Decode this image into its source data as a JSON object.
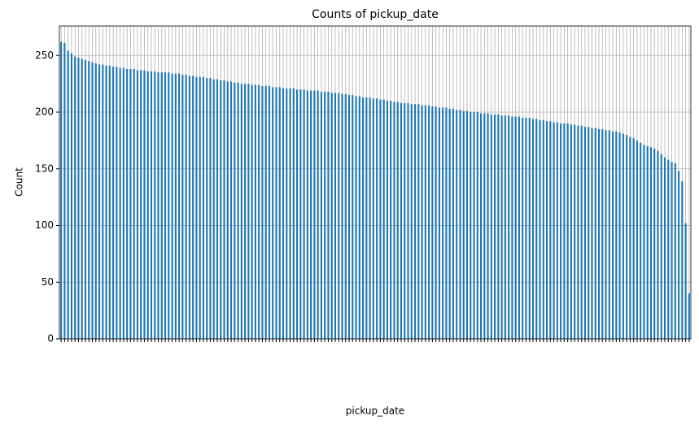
{
  "chart_data": {
    "type": "bar",
    "title": "Counts of pickup_date",
    "xlabel": "pickup_date",
    "ylabel": "Count",
    "categories": [
      null,
      null,
      null,
      null,
      null,
      null,
      null,
      null,
      null,
      null,
      null,
      null,
      null,
      null,
      null,
      null,
      null,
      null,
      null,
      null,
      null,
      null,
      null,
      null,
      null,
      null,
      null,
      null,
      null,
      null,
      null,
      null,
      null,
      null,
      null,
      null,
      null,
      null,
      null,
      null,
      null,
      null,
      null,
      null,
      null,
      null,
      null,
      null,
      null,
      null,
      null,
      null,
      null,
      null,
      null,
      null,
      null,
      null,
      null,
      null,
      null,
      null,
      null,
      null,
      null,
      null,
      null,
      null,
      null,
      null,
      null,
      null,
      null,
      null,
      null,
      null,
      null,
      null,
      null,
      null,
      null,
      null,
      null,
      null,
      null,
      null,
      null,
      null,
      null,
      null,
      null,
      null,
      null,
      null,
      null,
      null,
      null,
      null,
      null,
      null,
      null,
      null,
      null,
      null,
      null,
      null,
      null,
      null,
      null,
      null,
      null,
      null,
      null,
      null,
      null,
      null,
      null,
      null,
      null,
      null,
      null,
      null,
      null,
      null,
      null,
      null,
      null,
      null,
      null,
      null,
      null,
      null,
      null,
      null,
      null,
      null,
      null,
      null,
      null,
      null,
      null,
      null,
      null,
      null,
      null,
      null,
      null,
      null,
      null,
      null,
      null,
      null,
      null,
      null,
      null,
      null,
      null,
      null,
      null,
      null,
      null,
      null,
      null,
      null,
      null,
      null,
      null,
      null,
      null,
      null,
      null,
      null,
      null,
      null,
      null,
      null,
      null,
      null,
      null,
      null,
      null,
      null
    ],
    "values": [
      262,
      261,
      254,
      252,
      249,
      248,
      247,
      246,
      245,
      244,
      243,
      242,
      242,
      241,
      241,
      240,
      240,
      239,
      239,
      238,
      238,
      238,
      237,
      237,
      237,
      236,
      236,
      236,
      235,
      235,
      235,
      235,
      234,
      234,
      234,
      233,
      233,
      232,
      232,
      231,
      231,
      231,
      230,
      230,
      229,
      229,
      228,
      228,
      227,
      227,
      226,
      226,
      225,
      225,
      225,
      224,
      224,
      224,
      223,
      223,
      223,
      222,
      222,
      222,
      221,
      221,
      221,
      221,
      220,
      220,
      220,
      219,
      219,
      219,
      219,
      218,
      218,
      218,
      217,
      217,
      217,
      216,
      216,
      215,
      215,
      214,
      214,
      213,
      213,
      213,
      212,
      212,
      211,
      211,
      210,
      210,
      209,
      209,
      208,
      208,
      208,
      207,
      207,
      207,
      206,
      206,
      206,
      205,
      205,
      204,
      204,
      204,
      203,
      203,
      202,
      202,
      201,
      201,
      200,
      200,
      200,
      199,
      199,
      199,
      198,
      198,
      198,
      197,
      197,
      197,
      196,
      196,
      196,
      195,
      195,
      195,
      194,
      194,
      193,
      193,
      192,
      192,
      191,
      191,
      190,
      190,
      190,
      189,
      189,
      188,
      188,
      187,
      187,
      186,
      186,
      185,
      185,
      184,
      184,
      183,
      183,
      182,
      181,
      180,
      178,
      177,
      175,
      173,
      171,
      170,
      169,
      168,
      166,
      163,
      160,
      158,
      156,
      155,
      148,
      139,
      102,
      40
    ],
    "color": "#1f77b4",
    "ylim": [
      0,
      276
    ],
    "yticks": [
      0,
      50,
      100,
      150,
      200,
      250
    ],
    "grid": true
  }
}
